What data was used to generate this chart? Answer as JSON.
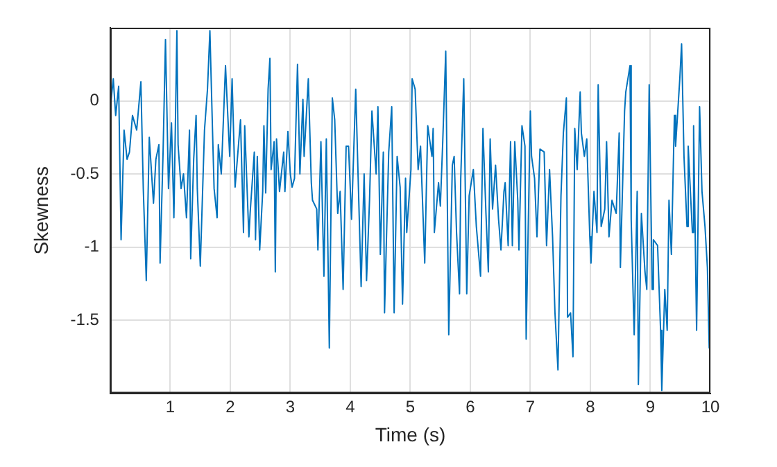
{
  "chart_data": {
    "type": "line",
    "xlabel": "Time (s)",
    "ylabel": "Skewness",
    "xlim": [
      0,
      10
    ],
    "ylim": [
      -2,
      0.5
    ],
    "xticks": [
      1,
      2,
      3,
      4,
      5,
      6,
      7,
      8,
      9,
      10
    ],
    "yticks": [
      -1.5,
      -1,
      -0.5,
      0
    ],
    "grid": true,
    "legend": false,
    "marker": "none",
    "line_style": "solid",
    "series": [
      {
        "color": "#0072bd",
        "x": [
          0.0,
          0.05,
          0.09,
          0.14,
          0.18,
          0.23,
          0.28,
          0.32,
          0.37,
          0.44,
          0.51,
          0.55,
          0.6,
          0.65,
          0.72,
          0.76,
          0.81,
          0.83,
          0.88,
          0.92,
          0.97,
          1.02,
          1.06,
          1.11,
          1.13,
          1.18,
          1.22,
          1.27,
          1.32,
          1.34,
          1.39,
          1.43,
          1.45,
          1.5,
          1.57,
          1.62,
          1.66,
          1.71,
          1.73,
          1.78,
          1.8,
          1.85,
          1.92,
          1.99,
          2.03,
          2.08,
          2.17,
          2.22,
          2.24,
          2.31,
          2.33,
          2.4,
          2.42,
          2.45,
          2.49,
          2.54,
          2.56,
          2.59,
          2.63,
          2.66,
          2.68,
          2.73,
          2.75,
          2.77,
          2.82,
          2.89,
          2.91,
          2.96,
          3.0,
          3.03,
          3.07,
          3.12,
          3.16,
          3.21,
          3.23,
          3.3,
          3.35,
          3.37,
          3.44,
          3.46,
          3.51,
          3.56,
          3.6,
          3.65,
          3.7,
          3.74,
          3.79,
          3.83,
          3.88,
          3.93,
          3.97,
          4.02,
          4.09,
          4.18,
          4.23,
          4.27,
          4.32,
          4.36,
          4.43,
          4.46,
          4.5,
          4.55,
          4.57,
          4.64,
          4.69,
          4.73,
          4.78,
          4.83,
          4.87,
          4.92,
          4.94,
          5.01,
          5.03,
          5.08,
          5.13,
          5.17,
          5.24,
          5.29,
          5.36,
          5.38,
          5.4,
          5.47,
          5.5,
          5.54,
          5.59,
          5.61,
          5.64,
          5.7,
          5.73,
          5.77,
          5.82,
          5.84,
          5.89,
          5.94,
          5.98,
          6.05,
          6.1,
          6.17,
          6.21,
          6.26,
          6.3,
          6.33,
          6.37,
          6.42,
          6.47,
          6.51,
          6.56,
          6.58,
          6.63,
          6.67,
          6.7,
          6.74,
          6.79,
          6.81,
          6.86,
          6.91,
          6.93,
          7.0,
          7.02,
          7.07,
          7.11,
          7.16,
          7.23,
          7.27,
          7.32,
          7.37,
          7.41,
          7.46,
          7.51,
          7.55,
          7.6,
          7.62,
          7.67,
          7.71,
          7.74,
          7.78,
          7.83,
          7.85,
          7.9,
          7.94,
          7.99,
          8.01,
          8.06,
          8.11,
          8.13,
          8.18,
          8.24,
          8.27,
          8.31,
          8.36,
          8.43,
          8.48,
          8.5,
          8.57,
          8.59,
          8.66,
          8.68,
          8.73,
          8.78,
          8.8,
          8.85,
          8.91,
          8.94,
          8.98,
          9.03,
          9.05,
          9.12,
          9.17,
          9.19,
          9.24,
          9.28,
          9.31,
          9.35,
          9.4,
          9.42,
          9.49,
          9.52,
          9.56,
          9.61,
          9.63,
          9.7,
          9.72,
          9.77,
          9.82,
          9.86,
          9.91,
          9.95,
          9.98,
          10.0
        ],
        "values": [
          -0.05,
          0.15,
          -0.1,
          0.1,
          -0.95,
          -0.2,
          -0.4,
          -0.35,
          -0.1,
          -0.2,
          0.13,
          -0.6,
          -1.23,
          -0.25,
          -0.7,
          -0.4,
          -0.3,
          -1.11,
          -0.35,
          0.42,
          -0.6,
          -0.15,
          -0.8,
          0.48,
          -0.3,
          -0.6,
          -0.5,
          -0.8,
          -0.2,
          -1.08,
          -0.4,
          -0.1,
          -0.6,
          -1.13,
          -0.2,
          0.08,
          0.48,
          -0.3,
          -0.6,
          -0.8,
          -0.3,
          -0.5,
          0.24,
          -0.38,
          0.15,
          -0.59,
          -0.13,
          -0.9,
          -0.17,
          -0.93,
          -0.77,
          -0.35,
          -0.95,
          -0.38,
          -1.02,
          -0.62,
          -0.17,
          -0.63,
          0.08,
          0.29,
          -0.47,
          -0.28,
          -1.17,
          -0.26,
          -0.62,
          -0.35,
          -0.62,
          -0.21,
          -0.5,
          -0.59,
          -0.53,
          0.25,
          -0.5,
          0.01,
          -0.38,
          0.15,
          -0.56,
          -0.68,
          -0.74,
          -1.02,
          -0.28,
          -1.2,
          -0.26,
          -1.69,
          0.02,
          -0.13,
          -0.77,
          -0.62,
          -1.29,
          -0.31,
          -0.31,
          -0.81,
          0.08,
          -1.27,
          -0.5,
          -1.23,
          -0.68,
          -0.07,
          -0.5,
          -0.04,
          -1.05,
          -0.35,
          -1.45,
          -0.35,
          -0.04,
          -1.45,
          -0.38,
          -0.59,
          -1.39,
          -0.53,
          -0.9,
          -0.47,
          0.15,
          0.08,
          -0.47,
          -0.31,
          -1.11,
          -0.17,
          -0.38,
          -0.19,
          -0.9,
          -0.56,
          -0.72,
          -0.28,
          0.34,
          -0.44,
          -1.6,
          -0.44,
          -0.38,
          -0.9,
          -1.32,
          -0.53,
          0.15,
          -1.32,
          -0.65,
          -0.47,
          -0.86,
          -1.2,
          -0.19,
          -0.77,
          -1.17,
          -0.26,
          -0.74,
          -0.44,
          -0.81,
          -1.02,
          -0.62,
          -0.56,
          -0.99,
          -0.28,
          -0.99,
          -0.28,
          -0.68,
          -1.02,
          -0.17,
          -0.31,
          -1.63,
          -0.07,
          -0.38,
          -0.53,
          -0.93,
          -0.33,
          -0.35,
          -0.99,
          -0.47,
          -0.93,
          -1.45,
          -1.84,
          -0.65,
          -0.22,
          0.02,
          -1.48,
          -1.45,
          -1.75,
          -0.19,
          -0.47,
          0.06,
          -0.22,
          -0.38,
          -0.26,
          -0.93,
          -1.11,
          -0.62,
          -0.9,
          0.11,
          -0.86,
          -0.74,
          -0.28,
          -0.93,
          -0.68,
          -0.77,
          -0.22,
          -1.14,
          -0.07,
          0.06,
          0.24,
          -0.81,
          -1.6,
          -0.62,
          -1.94,
          -0.77,
          -1.17,
          -1.29,
          0.11,
          -1.29,
          -0.95,
          -0.99,
          -1.57,
          -1.98,
          -1.29,
          -1.57,
          -0.68,
          -1.05,
          -0.1,
          -0.31,
          0.15,
          0.39,
          -0.38,
          -0.86,
          -0.31,
          -0.9,
          -0.17,
          -1.57,
          -0.04,
          -0.62,
          -0.86,
          -1.14,
          -1.69,
          -1.32
        ]
      }
    ]
  }
}
